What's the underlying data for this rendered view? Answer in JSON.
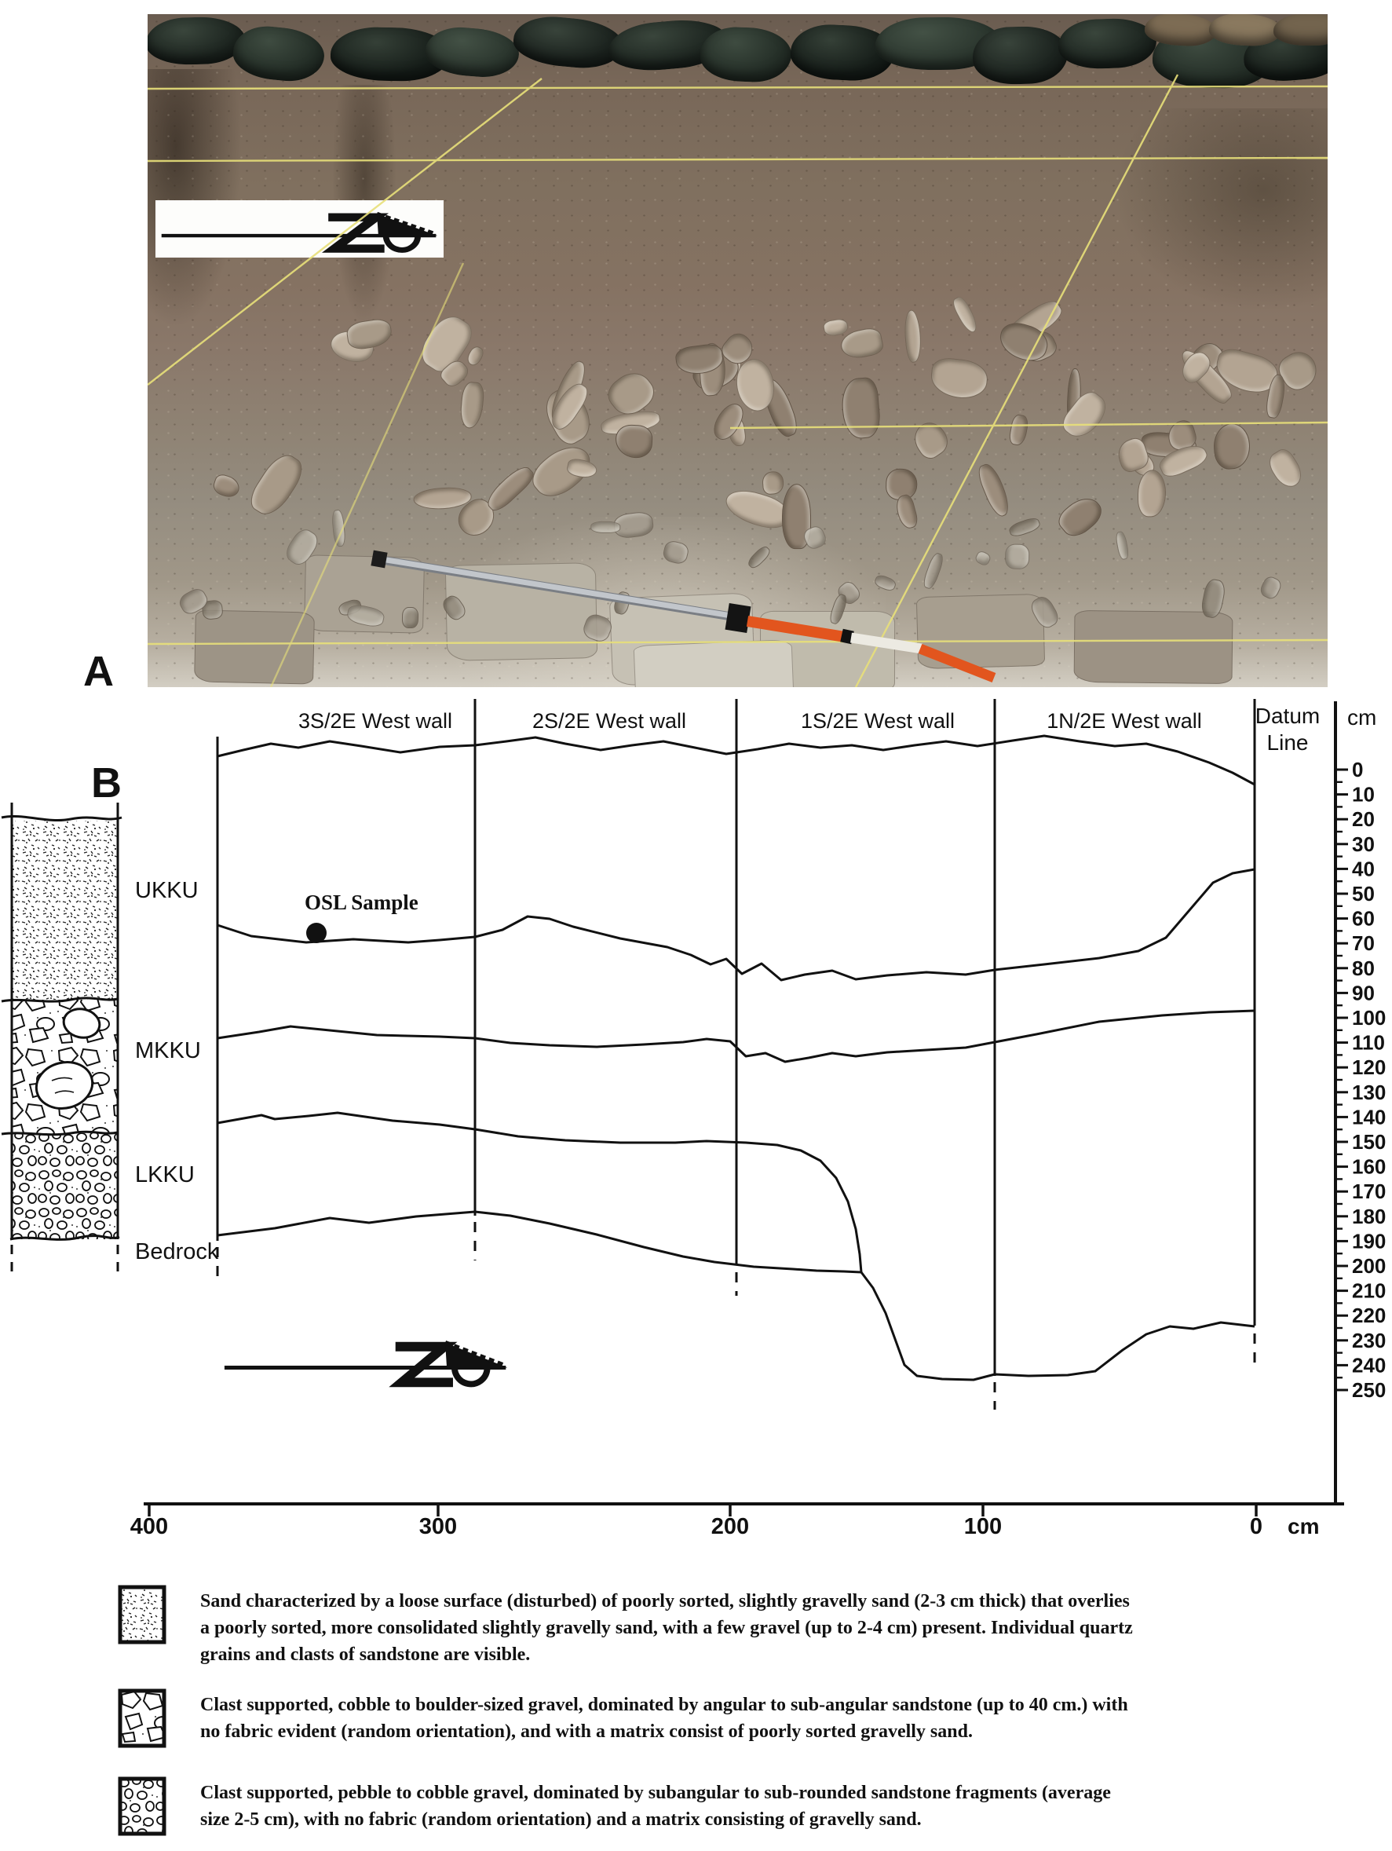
{
  "figure": {
    "panel_a_label": "A",
    "panel_b_label": "B"
  },
  "panel_b": {
    "wall_labels": [
      "3S/2E West wall",
      "2S/2E West wall",
      "1S/2E West wall",
      "1N/2E West wall"
    ],
    "datum_label_line1": "Datum",
    "datum_label_line2": "Line",
    "depth_unit_label": "cm",
    "depth_tick_labels": [
      "0",
      "10",
      "20",
      "30",
      "40",
      "50",
      "60",
      "70",
      "80",
      "90",
      "100",
      "110",
      "120",
      "130",
      "140",
      "150",
      "160",
      "170",
      "180",
      "190",
      "200",
      "210",
      "220",
      "230",
      "240",
      "250"
    ],
    "strat_units": [
      "UKKU",
      "MKKU",
      "LKKU",
      "Bedrock"
    ],
    "osl_sample_label": "OSL Sample",
    "h_scale_tick_labels": [
      "400",
      "300",
      "200",
      "100",
      "0"
    ],
    "h_scale_unit": "cm"
  },
  "legend": {
    "items": [
      {
        "texture": "sand-stipple",
        "text": "Sand characterized by a loose surface (disturbed) of poorly sorted, slightly gravelly sand (2-3 cm thick) that overlies a poorly sorted, more consolidated slightly gravelly sand, with a few gravel (up to 2-4 cm) present. Individual quartz grains and clasts of sandstone are visible."
      },
      {
        "texture": "cobble-boulder-gravel",
        "text": "Clast supported, cobble to boulder-sized gravel, dominated by angular to sub-angular sandstone (up to 40 cm.) with no fabric evident (random orientation), and with a matrix consist of poorly sorted gravelly sand."
      },
      {
        "texture": "pebble-cobble-gravel",
        "text": "Clast supported, pebble to cobble gravel, dominated by subangular to sub-rounded sandstone fragments (average size 2-5 cm), with no fabric (random orientation) and a matrix consisting of gravelly sand."
      }
    ]
  },
  "colors": {
    "ink": "#111111",
    "photo_string_yellow": "#e8e07a",
    "pole_orange": "#e2551e",
    "pole_silver": "#c2c6cb",
    "sandbag_dark_green": "#1d2520"
  }
}
